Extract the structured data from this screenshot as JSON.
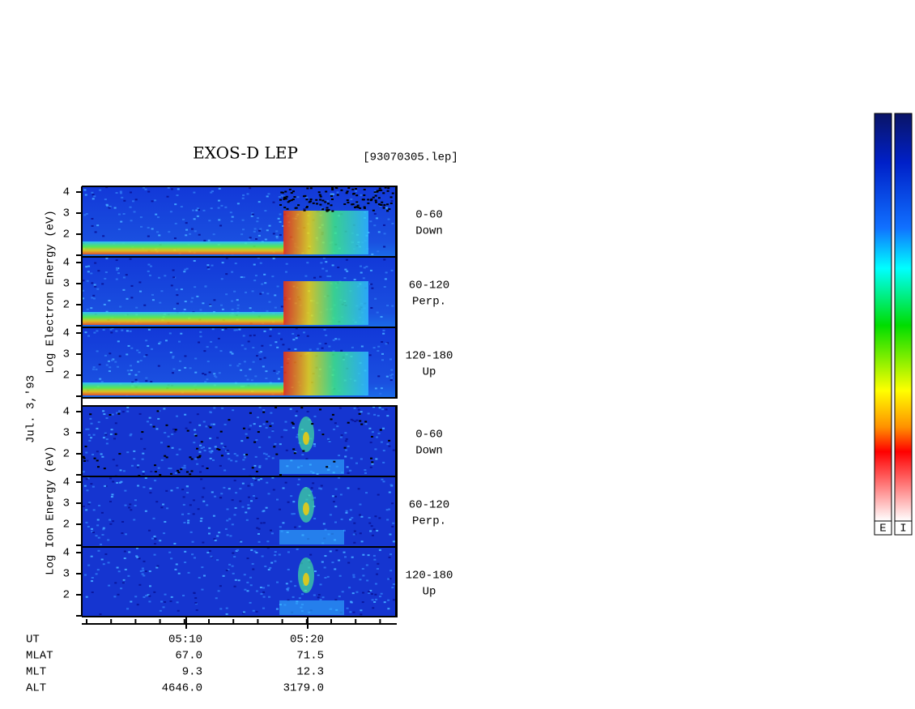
{
  "title": "EXOS-D LEP",
  "file": "[93070305.lep]",
  "date": "Jul. 3,'93",
  "electron_axis_label": "Log Electron Energy (eV)",
  "ion_axis_label": "Log Ion Energy (eV)",
  "energy_ticks": [
    4,
    3,
    2
  ],
  "angles": [
    {
      "range": "0-60",
      "dir": "Down"
    },
    {
      "range": "60-120",
      "dir": "Perp."
    },
    {
      "range": "120-180",
      "dir": "Up"
    }
  ],
  "footer": {
    "rows": [
      [
        "UT",
        "05:10",
        "05:20"
      ],
      [
        "MLAT",
        "67.0",
        "71.5"
      ],
      [
        "MLT",
        "9.3",
        "12.3"
      ],
      [
        "ALT",
        "4646.0",
        "3179.0"
      ]
    ]
  },
  "colorbars": [
    "E",
    "I"
  ]
}
